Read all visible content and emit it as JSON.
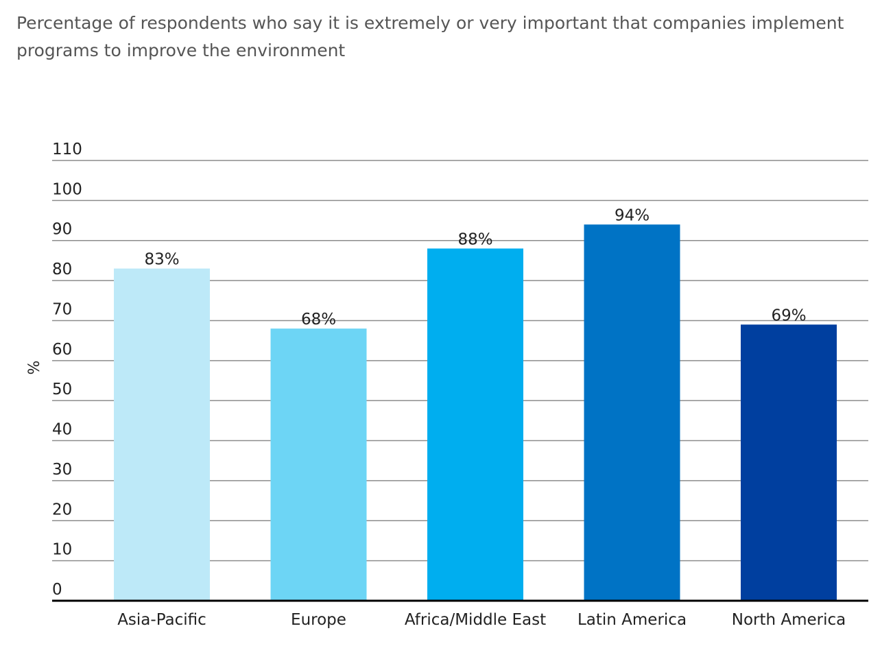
{
  "chart_data": {
    "type": "bar",
    "title": "Percentage of respondents who say it is extremely or very important that companies implement programs to improve the environment",
    "xlabel": "",
    "ylabel": "%",
    "ylim": [
      0,
      110
    ],
    "yticks": [
      0,
      10,
      20,
      30,
      40,
      50,
      60,
      70,
      80,
      90,
      100,
      110
    ],
    "grid": true,
    "legend": "none",
    "categories": [
      "Asia-Pacific",
      "Europe",
      "Africa/Middle East",
      "Latin America",
      "North America"
    ],
    "values": [
      83,
      68,
      88,
      94,
      69
    ],
    "data_labels": [
      "83%",
      "68%",
      "88%",
      "94%",
      "69%"
    ],
    "colors": [
      "#bde9f8",
      "#6dd5f5",
      "#00aeef",
      "#0073c5",
      "#003f9f"
    ]
  }
}
